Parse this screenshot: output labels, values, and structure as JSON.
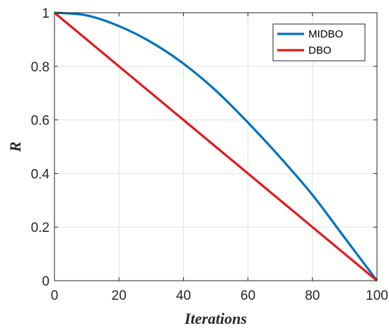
{
  "chart_data": {
    "type": "line",
    "xlabel": "Iterations",
    "ylabel": "R",
    "xlim": [
      0,
      100
    ],
    "ylim": [
      0,
      1
    ],
    "xticks": [
      0,
      20,
      40,
      60,
      80,
      100
    ],
    "yticks": [
      0,
      0.2,
      0.4,
      0.6,
      0.8,
      1
    ],
    "ytick_labels": [
      "0",
      "0.2",
      "0.4",
      "0.6",
      "0.8",
      "1"
    ],
    "grid": true,
    "legend_position": "top-right",
    "series": [
      {
        "name": "MIDBO",
        "color": "#0072BD",
        "x": [
          0,
          10,
          20,
          30,
          40,
          50,
          60,
          70,
          80,
          90,
          100
        ],
        "y": [
          1,
          0.99,
          0.95,
          0.89,
          0.81,
          0.71,
          0.59,
          0.46,
          0.32,
          0.16,
          0
        ]
      },
      {
        "name": "DBO",
        "color": "#E01B1B",
        "x": [
          0,
          100
        ],
        "y": [
          1,
          0
        ]
      }
    ]
  }
}
